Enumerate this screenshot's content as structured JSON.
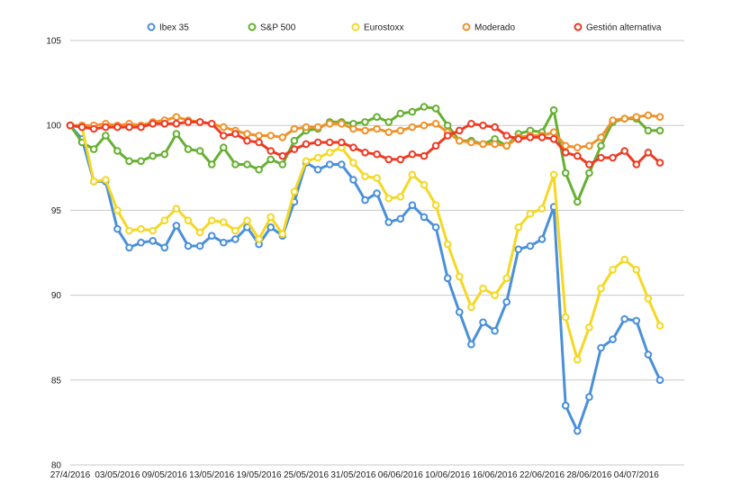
{
  "chart_data": {
    "type": "line",
    "title": "",
    "xlabel": "",
    "ylabel": "",
    "ylim": [
      80,
      105
    ],
    "yticks": [
      80,
      85,
      90,
      95,
      100,
      105
    ],
    "grid": "horizontal",
    "legend_position": "top",
    "x": [
      "27/4/2016",
      "28/4/2016",
      "29/4/2016",
      "02/05/2016",
      "03/05/2016",
      "04/05/2016",
      "05/05/2016",
      "06/05/2016",
      "09/05/2016",
      "10/05/2016",
      "11/05/2016",
      "12/05/2016",
      "13/05/2016",
      "16/05/2016",
      "17/05/2016",
      "18/05/2016",
      "19/05/2016",
      "20/05/2016",
      "23/05/2016",
      "24/05/2016",
      "25/05/2016",
      "26/05/2016",
      "27/05/2016",
      "30/05/2016",
      "31/05/2016",
      "01/06/2016",
      "02/06/2016",
      "03/06/2016",
      "06/06/2016",
      "07/06/2016",
      "08/06/2016",
      "09/06/2016",
      "10/06/2016",
      "13/06/2016",
      "14/06/2016",
      "15/06/2016",
      "16/06/2016",
      "17/06/2016",
      "20/06/2016",
      "21/06/2016",
      "22/06/2016",
      "23/06/2016",
      "24/06/2016",
      "27/06/2016",
      "28/06/2016",
      "29/06/2016",
      "30/06/2016",
      "01/07/2016",
      "04/07/2016",
      "05/07/2016",
      "06/07/2016",
      "07/07/2016"
    ],
    "x_tick_labels": [
      "27/4/2016",
      "03/05/2016",
      "09/05/2016",
      "13/05/2016",
      "19/05/2016",
      "25/05/2016",
      "31/05/2016",
      "06/06/2016",
      "10/06/2016",
      "16/06/2016",
      "22/06/2016",
      "28/06/2016",
      "04/07/2016"
    ],
    "series": [
      {
        "name": "Ibex 35",
        "color": "#4a90d9",
        "values": [
          100,
          99.2,
          96.7,
          96.7,
          93.9,
          92.8,
          93.1,
          93.2,
          92.8,
          94.1,
          92.9,
          92.9,
          93.5,
          93.1,
          93.3,
          94.0,
          93.0,
          94.0,
          93.5,
          95.5,
          97.8,
          97.4,
          97.7,
          97.7,
          96.8,
          95.6,
          96.0,
          94.3,
          94.5,
          95.3,
          94.6,
          94.0,
          91.0,
          89.0,
          87.1,
          88.4,
          87.9,
          89.6,
          92.7,
          92.9,
          93.3,
          95.2,
          83.5,
          82.0,
          84.0,
          86.9,
          87.4,
          88.6,
          88.5,
          86.5,
          85.0,
          null
        ]
      },
      {
        "name": "S&P 500",
        "color": "#66b032",
        "values": [
          100,
          99.0,
          98.6,
          99.4,
          98.5,
          97.9,
          97.9,
          98.2,
          98.3,
          99.5,
          98.6,
          98.5,
          97.7,
          98.7,
          97.7,
          97.7,
          97.4,
          98.0,
          97.7,
          99.1,
          99.7,
          99.8,
          100.2,
          100.2,
          100.1,
          100.2,
          100.5,
          100.2,
          100.7,
          100.8,
          101.1,
          101.0,
          100.0,
          99.1,
          99.1,
          98.9,
          99.2,
          98.8,
          99.5,
          99.7,
          99.6,
          100.9,
          97.2,
          95.5,
          97.2,
          98.8,
          100.2,
          100.4,
          100.4,
          99.7,
          99.7,
          null
        ]
      },
      {
        "name": "Eurostoxx",
        "color": "#f5d823",
        "values": [
          100,
          99.9,
          96.7,
          96.8,
          95.0,
          93.8,
          93.9,
          93.8,
          94.4,
          95.1,
          94.4,
          93.7,
          94.4,
          94.3,
          93.8,
          94.4,
          93.3,
          94.6,
          93.6,
          96.1,
          97.9,
          98.1,
          98.4,
          98.7,
          97.8,
          97.0,
          96.9,
          95.7,
          95.8,
          97.1,
          96.5,
          95.3,
          93.0,
          91.1,
          89.3,
          90.4,
          90.0,
          91.0,
          94.0,
          94.8,
          95.1,
          97.1,
          88.7,
          86.2,
          88.1,
          90.4,
          91.5,
          92.1,
          91.5,
          89.8,
          88.2,
          null
        ]
      },
      {
        "name": "Moderado",
        "color": "#f0922b",
        "values": [
          100,
          100.0,
          100.0,
          100.1,
          100.0,
          100.1,
          100.0,
          100.2,
          100.3,
          100.5,
          100.3,
          100.2,
          100.1,
          99.9,
          99.7,
          99.5,
          99.4,
          99.4,
          99.3,
          99.8,
          99.9,
          99.9,
          100.1,
          100.1,
          99.8,
          99.7,
          99.8,
          99.6,
          99.7,
          99.9,
          100.0,
          100.1,
          99.6,
          99.1,
          99.0,
          98.9,
          98.9,
          98.8,
          99.3,
          99.4,
          99.4,
          99.6,
          98.8,
          98.7,
          98.8,
          99.3,
          100.3,
          100.4,
          100.5,
          100.6,
          100.5,
          null
        ]
      },
      {
        "name": "Gestión alternativa",
        "color": "#ee3a23",
        "values": [
          100,
          99.9,
          99.8,
          99.9,
          99.9,
          99.9,
          99.9,
          100.1,
          100.1,
          100.1,
          100.2,
          100.2,
          100.1,
          99.4,
          99.5,
          99.1,
          99.0,
          98.5,
          98.2,
          98.6,
          98.9,
          99.0,
          99.0,
          99.0,
          98.7,
          98.4,
          98.3,
          98.0,
          98.0,
          98.3,
          98.2,
          98.8,
          99.4,
          99.7,
          100.1,
          100.0,
          99.9,
          99.4,
          99.2,
          99.3,
          99.3,
          99.2,
          98.4,
          98.2,
          97.7,
          98.1,
          98.1,
          98.5,
          97.7,
          98.4,
          97.8,
          null
        ]
      }
    ]
  }
}
